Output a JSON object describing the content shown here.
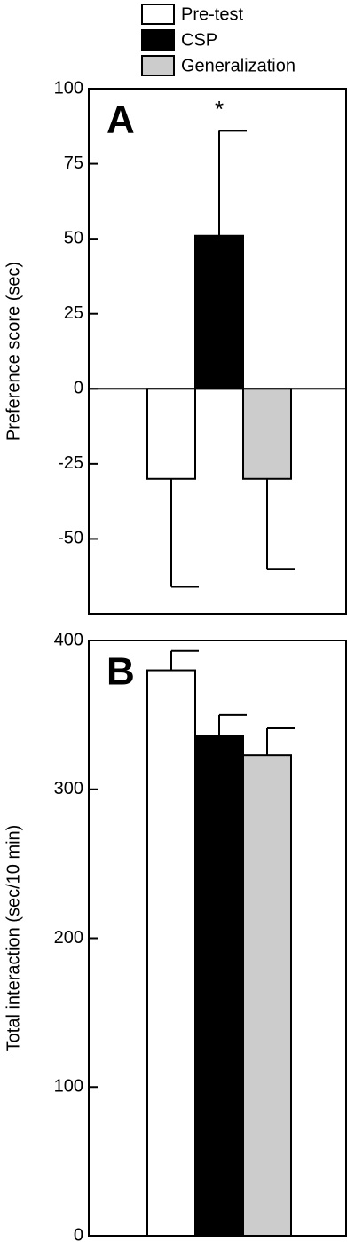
{
  "chart_data": [
    {
      "type": "bar",
      "panel_label": "A",
      "y_label": "Preference score (sec)",
      "annotation": "*",
      "categories": [
        "Pre-test",
        "CSP",
        "Generalization"
      ],
      "colors": [
        "#ffffff",
        "#000000",
        "#cccccc"
      ],
      "values": [
        -30,
        51,
        -30
      ],
      "errors": [
        36,
        35,
        30
      ],
      "ylim": [
        -75,
        100
      ],
      "yticks": [
        -50,
        -25,
        0,
        25,
        50,
        75,
        100
      ]
    },
    {
      "type": "bar",
      "panel_label": "B",
      "y_label": "Total interaction (sec/10 min)",
      "categories": [
        "Pre-test",
        "CSP",
        "Generalization"
      ],
      "colors": [
        "#ffffff",
        "#000000",
        "#cccccc"
      ],
      "values": [
        380,
        336,
        323
      ],
      "errors": [
        13,
        14,
        18
      ],
      "ylim": [
        0,
        400
      ],
      "yticks": [
        0,
        100,
        200,
        300,
        400
      ]
    }
  ]
}
